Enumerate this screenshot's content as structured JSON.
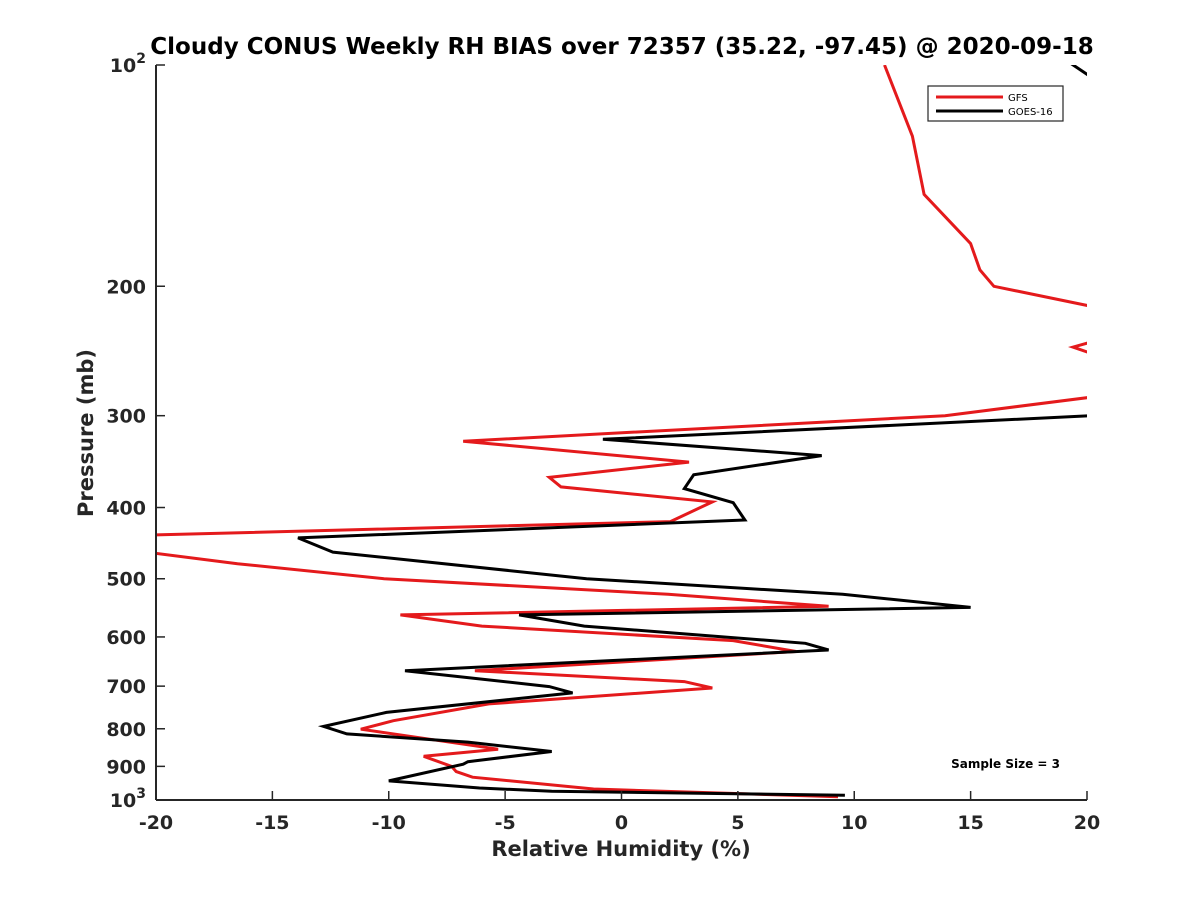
{
  "chart_data": {
    "type": "line",
    "title": "Cloudy CONUS Weekly RH BIAS over 72357 (35.22, -97.45) @ 2020-09-18",
    "xlabel": "Relative Humidity (%)",
    "ylabel": "Pressure (mb)",
    "xlim": [
      -20,
      20
    ],
    "ylim": [
      100,
      1000
    ],
    "y_scale": "log",
    "y_reversed": true,
    "x_ticks": [
      {
        "value": -20,
        "label": "-20"
      },
      {
        "value": -15,
        "label": "-15"
      },
      {
        "value": -10,
        "label": "-10"
      },
      {
        "value": -5,
        "label": "-5"
      },
      {
        "value": 0,
        "label": "0"
      },
      {
        "value": 5,
        "label": "5"
      },
      {
        "value": 10,
        "label": "10"
      },
      {
        "value": 15,
        "label": "15"
      },
      {
        "value": 20,
        "label": "20"
      }
    ],
    "y_ticks": [
      {
        "value": 100,
        "base": "10",
        "exp": "2"
      },
      {
        "value": 200,
        "label": "200"
      },
      {
        "value": 300,
        "label": "300"
      },
      {
        "value": 400,
        "label": "400"
      },
      {
        "value": 500,
        "label": "500"
      },
      {
        "value": 600,
        "label": "600"
      },
      {
        "value": 700,
        "label": "700"
      },
      {
        "value": 800,
        "label": "800"
      },
      {
        "value": 900,
        "label": "900"
      },
      {
        "value": 1000,
        "base": "10",
        "exp": "3"
      }
    ],
    "legend_position": "top-right",
    "grid": false,
    "series": [
      {
        "name": "GFS",
        "color": "#e41a1c",
        "points": [
          [
            11.3,
            100
          ],
          [
            12.5,
            125
          ],
          [
            13.0,
            150
          ],
          [
            15.0,
            175
          ],
          [
            15.4,
            190
          ],
          [
            16.0,
            200
          ],
          [
            20.2,
            213
          ],
          [
            null,
            null
          ],
          [
            20.2,
            238
          ],
          [
            19.4,
            242
          ],
          [
            20.2,
            247
          ],
          [
            null,
            null
          ],
          [
            20.2,
            283
          ],
          [
            13.9,
            300
          ],
          [
            -6.8,
            325
          ],
          [
            2.9,
            347
          ],
          [
            -3.1,
            364
          ],
          [
            -2.6,
            375
          ],
          [
            3.9,
            393
          ],
          [
            2.1,
            418
          ],
          [
            -20.2,
            436
          ],
          [
            null,
            null
          ],
          [
            -20.2,
            461
          ],
          [
            -16.5,
            477
          ],
          [
            -10.2,
            500
          ],
          [
            2.0,
            525
          ],
          [
            8.9,
            545
          ],
          [
            -9.5,
            560
          ],
          [
            -6.0,
            580
          ],
          [
            4.8,
            607
          ],
          [
            7.5,
            628
          ],
          [
            -6.3,
            667
          ],
          [
            2.7,
            690
          ],
          [
            3.9,
            704
          ],
          [
            -5.7,
            740
          ],
          [
            -9.8,
            780
          ],
          [
            -11.2,
            801
          ],
          [
            -5.3,
            853
          ],
          [
            -8.5,
            872
          ],
          [
            -7.3,
            900
          ],
          [
            -7.1,
            915
          ],
          [
            -6.4,
            931
          ],
          [
            -1.2,
            966
          ],
          [
            9.3,
            990
          ]
        ]
      },
      {
        "name": "GOES-16",
        "color": "#000000",
        "points": [
          [
            19.2,
            99
          ],
          [
            20.2,
            104
          ],
          [
            null,
            null
          ],
          [
            20.2,
            300
          ],
          [
            -0.8,
            323
          ],
          [
            8.6,
            340
          ],
          [
            3.1,
            361
          ],
          [
            2.7,
            377
          ],
          [
            4.8,
            394
          ],
          [
            5.3,
            416
          ],
          [
            -13.9,
            440
          ],
          [
            -12.4,
            460
          ],
          [
            -1.5,
            500
          ],
          [
            9.5,
            525
          ],
          [
            15.0,
            547
          ],
          [
            -4.4,
            560
          ],
          [
            -1.6,
            580
          ],
          [
            7.9,
            612
          ],
          [
            8.9,
            625
          ],
          [
            2.3,
            640
          ],
          [
            -9.3,
            667
          ],
          [
            -3.1,
            701
          ],
          [
            -2.1,
            715
          ],
          [
            -10.1,
            760
          ],
          [
            -12.8,
            794
          ],
          [
            -11.8,
            813
          ],
          [
            -6.6,
            834
          ],
          [
            -3.0,
            859
          ],
          [
            -6.6,
            887
          ],
          [
            -6.8,
            894
          ],
          [
            -10.0,
            942
          ],
          [
            -6.1,
            963
          ],
          [
            -3.0,
            973
          ],
          [
            9.6,
            985
          ]
        ]
      }
    ],
    "annotations": [
      {
        "text": "Sample Size = 3",
        "x": 16.5,
        "y": 905
      }
    ]
  }
}
